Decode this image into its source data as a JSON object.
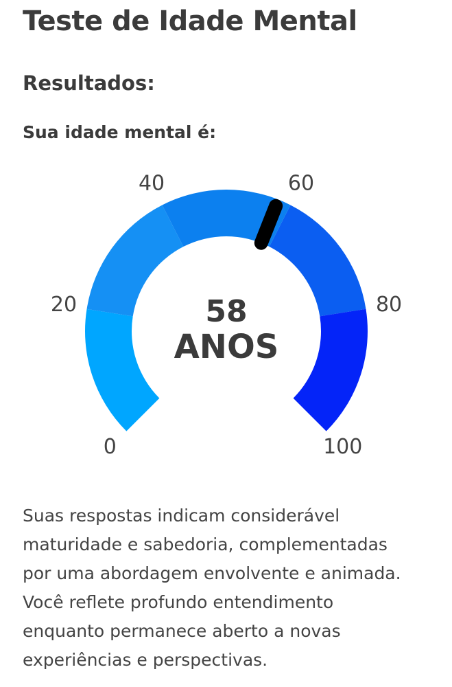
{
  "header": {
    "title": "Teste de Idade Mental"
  },
  "section": {
    "title": "Resultados:",
    "label": "Sua idade mental é:"
  },
  "gauge": {
    "type": "gauge",
    "value": 58,
    "unit": "ANOS",
    "range": [
      0,
      100
    ],
    "ticks": [
      0,
      20,
      40,
      60,
      80,
      100
    ],
    "segment_colors": [
      "#00a6ff",
      "#1590f4",
      "#0c80ef",
      "#0b5ef1",
      "#0424f8"
    ],
    "needle_color": "#000000"
  },
  "description": {
    "lines": [
      "Suas respostas indicam considerável",
      "maturidade e sabedoria, complementadas",
      "por uma abordagem envolvente e animada.",
      "Você reflete profundo entendimento",
      "enquanto permanece aberto a novas",
      "experiências e perspectivas."
    ]
  }
}
